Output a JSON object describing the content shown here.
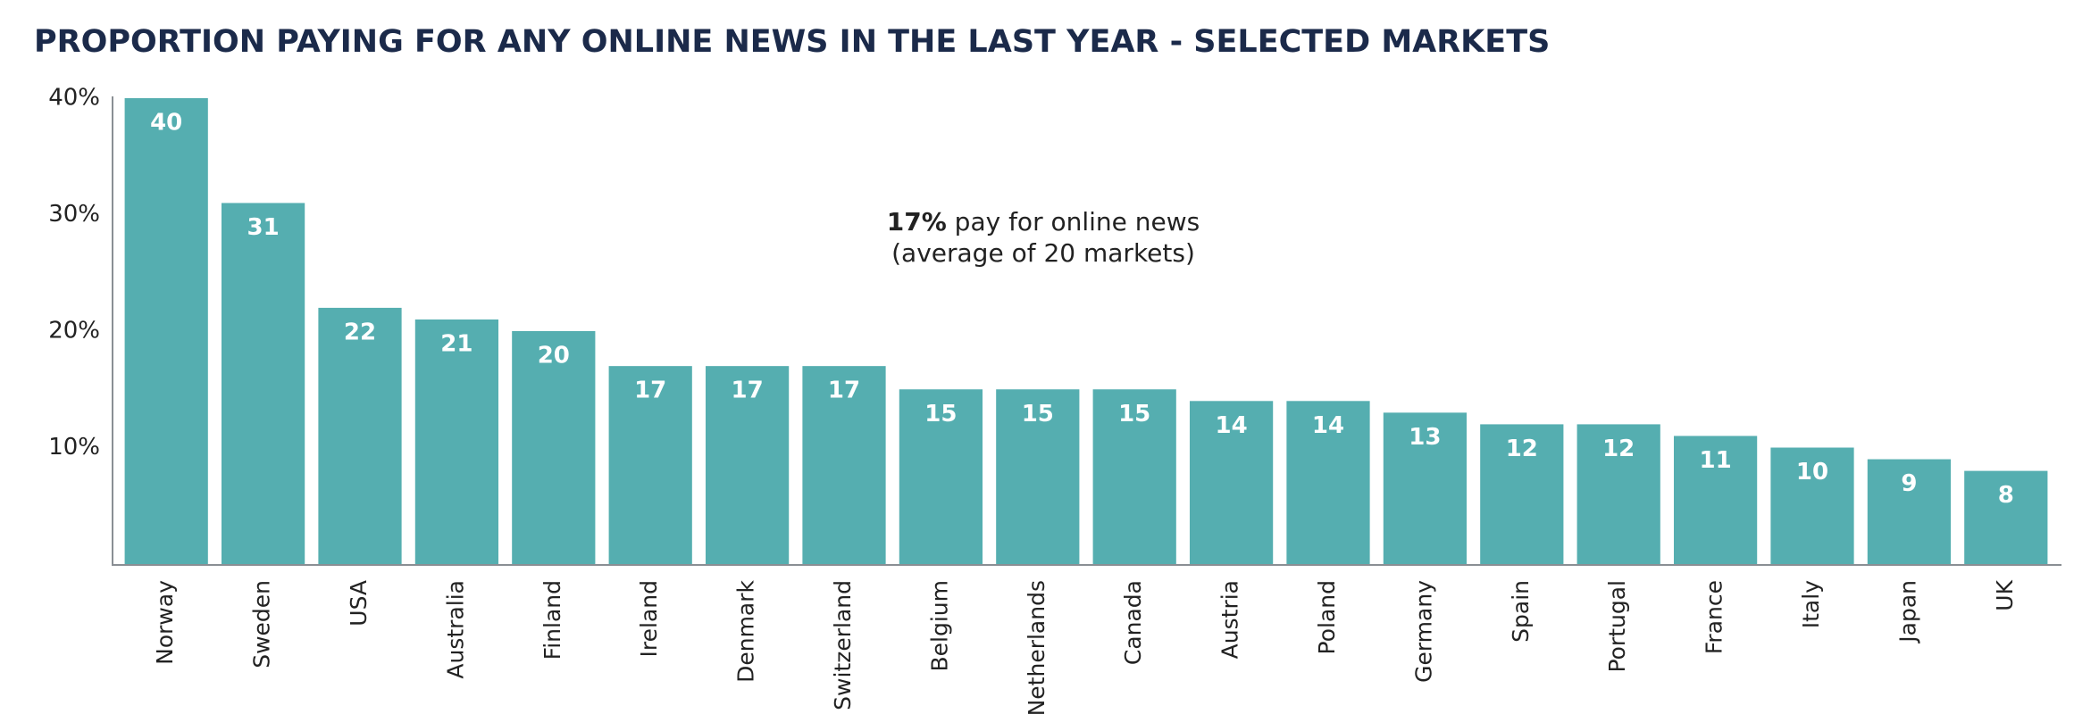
{
  "chart_data": {
    "type": "bar",
    "title": "PROPORTION PAYING FOR ANY ONLINE NEWS IN THE LAST YEAR - SELECTED MARKETS",
    "annotation": {
      "bold": "17%",
      "text": "pay for online news",
      "line2": "(average of 20 markets)"
    },
    "categories": [
      "Norway",
      "Sweden",
      "USA",
      "Australia",
      "Finland",
      "Ireland",
      "Denmark",
      "Switzerland",
      "Belgium",
      "Netherlands",
      "Canada",
      "Austria",
      "Poland",
      "Germany",
      "Spain",
      "Portugal",
      "France",
      "Italy",
      "Japan",
      "UK"
    ],
    "values": [
      40,
      31,
      22,
      21,
      20,
      17,
      17,
      17,
      15,
      15,
      15,
      14,
      14,
      13,
      12,
      12,
      11,
      10,
      9,
      8
    ],
    "color": "#55aeb0",
    "ylim": [
      0,
      40
    ],
    "yticks": [
      {
        "value": 10,
        "label": "10%"
      },
      {
        "value": 20,
        "label": "20%"
      },
      {
        "value": 30,
        "label": "30%"
      },
      {
        "value": 40,
        "label": "40%"
      }
    ],
    "grid": false
  }
}
